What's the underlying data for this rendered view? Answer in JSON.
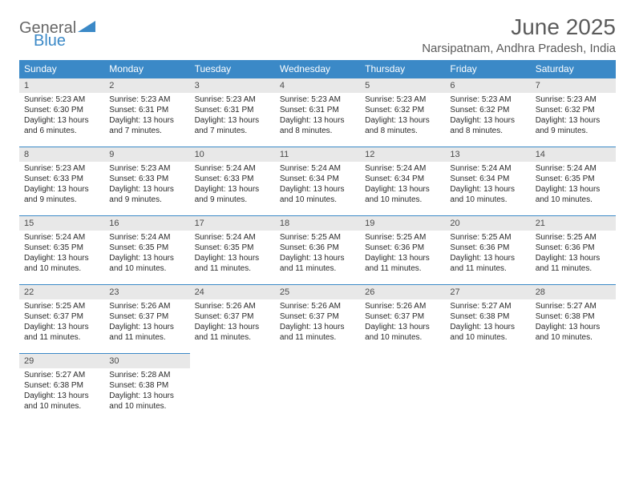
{
  "logo": {
    "line1": "General",
    "line2": "Blue"
  },
  "header": {
    "title": "June 2025",
    "location": "Narsipatnam, Andhra Pradesh, India"
  },
  "colors": {
    "accent": "#3b89c7",
    "header_text": "#ffffff",
    "daynum_bg": "#e8e8e8",
    "text": "#2a2a2a",
    "muted": "#5b5b5b"
  },
  "daynames": [
    "Sunday",
    "Monday",
    "Tuesday",
    "Wednesday",
    "Thursday",
    "Friday",
    "Saturday"
  ],
  "weeks": [
    [
      {
        "n": "1",
        "sr": "Sunrise: 5:23 AM",
        "ss": "Sunset: 6:30 PM",
        "dl": "Daylight: 13 hours and 6 minutes."
      },
      {
        "n": "2",
        "sr": "Sunrise: 5:23 AM",
        "ss": "Sunset: 6:31 PM",
        "dl": "Daylight: 13 hours and 7 minutes."
      },
      {
        "n": "3",
        "sr": "Sunrise: 5:23 AM",
        "ss": "Sunset: 6:31 PM",
        "dl": "Daylight: 13 hours and 7 minutes."
      },
      {
        "n": "4",
        "sr": "Sunrise: 5:23 AM",
        "ss": "Sunset: 6:31 PM",
        "dl": "Daylight: 13 hours and 8 minutes."
      },
      {
        "n": "5",
        "sr": "Sunrise: 5:23 AM",
        "ss": "Sunset: 6:32 PM",
        "dl": "Daylight: 13 hours and 8 minutes."
      },
      {
        "n": "6",
        "sr": "Sunrise: 5:23 AM",
        "ss": "Sunset: 6:32 PM",
        "dl": "Daylight: 13 hours and 8 minutes."
      },
      {
        "n": "7",
        "sr": "Sunrise: 5:23 AM",
        "ss": "Sunset: 6:32 PM",
        "dl": "Daylight: 13 hours and 9 minutes."
      }
    ],
    [
      {
        "n": "8",
        "sr": "Sunrise: 5:23 AM",
        "ss": "Sunset: 6:33 PM",
        "dl": "Daylight: 13 hours and 9 minutes."
      },
      {
        "n": "9",
        "sr": "Sunrise: 5:23 AM",
        "ss": "Sunset: 6:33 PM",
        "dl": "Daylight: 13 hours and 9 minutes."
      },
      {
        "n": "10",
        "sr": "Sunrise: 5:24 AM",
        "ss": "Sunset: 6:33 PM",
        "dl": "Daylight: 13 hours and 9 minutes."
      },
      {
        "n": "11",
        "sr": "Sunrise: 5:24 AM",
        "ss": "Sunset: 6:34 PM",
        "dl": "Daylight: 13 hours and 10 minutes."
      },
      {
        "n": "12",
        "sr": "Sunrise: 5:24 AM",
        "ss": "Sunset: 6:34 PM",
        "dl": "Daylight: 13 hours and 10 minutes."
      },
      {
        "n": "13",
        "sr": "Sunrise: 5:24 AM",
        "ss": "Sunset: 6:34 PM",
        "dl": "Daylight: 13 hours and 10 minutes."
      },
      {
        "n": "14",
        "sr": "Sunrise: 5:24 AM",
        "ss": "Sunset: 6:35 PM",
        "dl": "Daylight: 13 hours and 10 minutes."
      }
    ],
    [
      {
        "n": "15",
        "sr": "Sunrise: 5:24 AM",
        "ss": "Sunset: 6:35 PM",
        "dl": "Daylight: 13 hours and 10 minutes."
      },
      {
        "n": "16",
        "sr": "Sunrise: 5:24 AM",
        "ss": "Sunset: 6:35 PM",
        "dl": "Daylight: 13 hours and 10 minutes."
      },
      {
        "n": "17",
        "sr": "Sunrise: 5:24 AM",
        "ss": "Sunset: 6:35 PM",
        "dl": "Daylight: 13 hours and 11 minutes."
      },
      {
        "n": "18",
        "sr": "Sunrise: 5:25 AM",
        "ss": "Sunset: 6:36 PM",
        "dl": "Daylight: 13 hours and 11 minutes."
      },
      {
        "n": "19",
        "sr": "Sunrise: 5:25 AM",
        "ss": "Sunset: 6:36 PM",
        "dl": "Daylight: 13 hours and 11 minutes."
      },
      {
        "n": "20",
        "sr": "Sunrise: 5:25 AM",
        "ss": "Sunset: 6:36 PM",
        "dl": "Daylight: 13 hours and 11 minutes."
      },
      {
        "n": "21",
        "sr": "Sunrise: 5:25 AM",
        "ss": "Sunset: 6:36 PM",
        "dl": "Daylight: 13 hours and 11 minutes."
      }
    ],
    [
      {
        "n": "22",
        "sr": "Sunrise: 5:25 AM",
        "ss": "Sunset: 6:37 PM",
        "dl": "Daylight: 13 hours and 11 minutes."
      },
      {
        "n": "23",
        "sr": "Sunrise: 5:26 AM",
        "ss": "Sunset: 6:37 PM",
        "dl": "Daylight: 13 hours and 11 minutes."
      },
      {
        "n": "24",
        "sr": "Sunrise: 5:26 AM",
        "ss": "Sunset: 6:37 PM",
        "dl": "Daylight: 13 hours and 11 minutes."
      },
      {
        "n": "25",
        "sr": "Sunrise: 5:26 AM",
        "ss": "Sunset: 6:37 PM",
        "dl": "Daylight: 13 hours and 11 minutes."
      },
      {
        "n": "26",
        "sr": "Sunrise: 5:26 AM",
        "ss": "Sunset: 6:37 PM",
        "dl": "Daylight: 13 hours and 10 minutes."
      },
      {
        "n": "27",
        "sr": "Sunrise: 5:27 AM",
        "ss": "Sunset: 6:38 PM",
        "dl": "Daylight: 13 hours and 10 minutes."
      },
      {
        "n": "28",
        "sr": "Sunrise: 5:27 AM",
        "ss": "Sunset: 6:38 PM",
        "dl": "Daylight: 13 hours and 10 minutes."
      }
    ],
    [
      {
        "n": "29",
        "sr": "Sunrise: 5:27 AM",
        "ss": "Sunset: 6:38 PM",
        "dl": "Daylight: 13 hours and 10 minutes."
      },
      {
        "n": "30",
        "sr": "Sunrise: 5:28 AM",
        "ss": "Sunset: 6:38 PM",
        "dl": "Daylight: 13 hours and 10 minutes."
      },
      {
        "empty": true
      },
      {
        "empty": true
      },
      {
        "empty": true
      },
      {
        "empty": true
      },
      {
        "empty": true
      }
    ]
  ]
}
